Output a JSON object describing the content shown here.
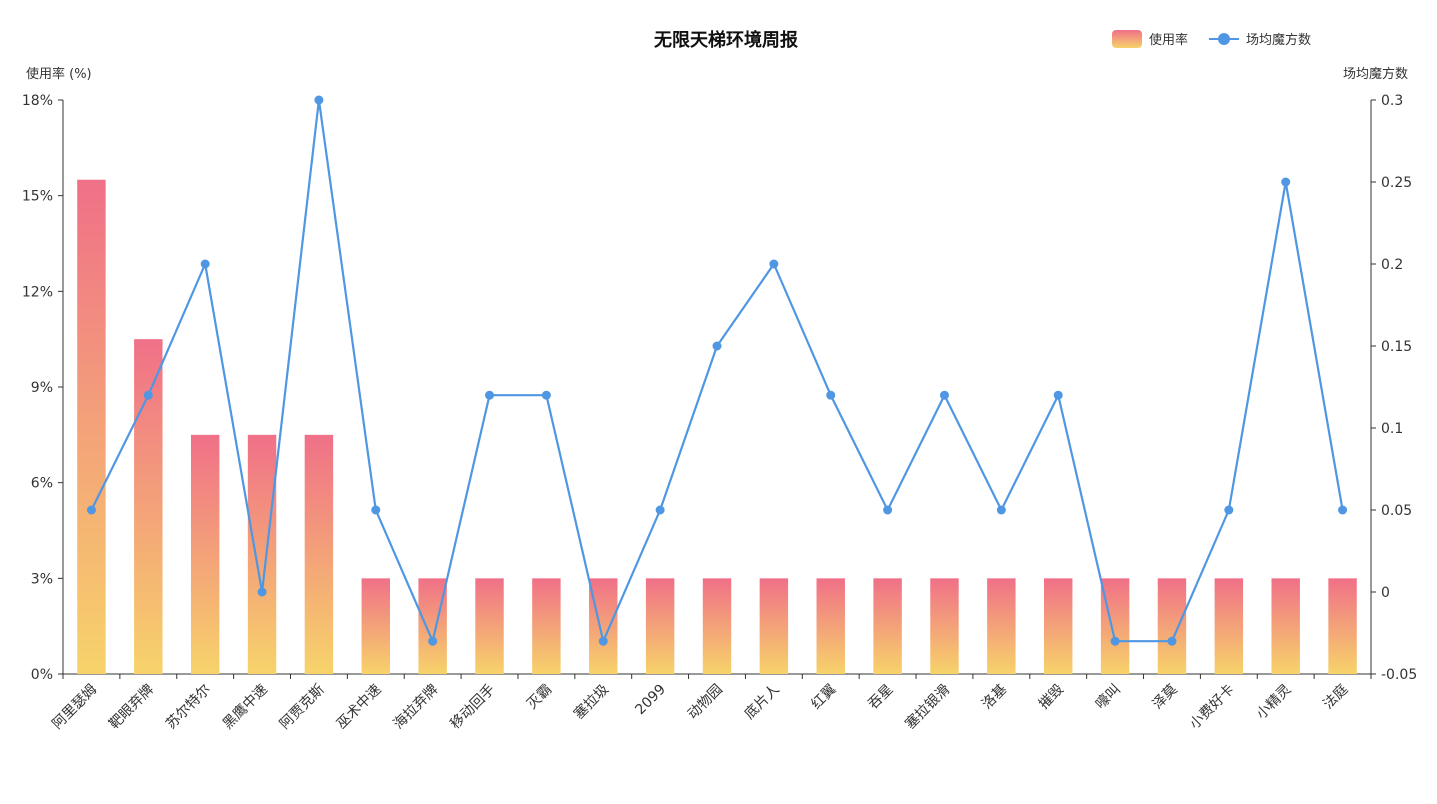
{
  "chart_data": {
    "type": "bar",
    "title": "无限天梯环境周报",
    "legend": {
      "position": "top-right",
      "items": [
        "使用率",
        "场均魔方数"
      ]
    },
    "categories": [
      "阿里瑟姆",
      "靶眼弃牌",
      "苏尔特尔",
      "黑鹰中速",
      "阿贾克斯",
      "巫术中速",
      "海拉弃牌",
      "移动回手",
      "灭霸",
      "塞拉圾",
      "2099",
      "动物园",
      "底片人",
      "红翼",
      "吞星",
      "塞拉银滑",
      "洛基",
      "摧毁",
      "嚎叫",
      "泽莫",
      "小费好卡",
      "小精灵",
      "法庭"
    ],
    "left_axis": {
      "label": "使用率 (%)",
      "min": 0,
      "max": 18,
      "ticks": [
        0,
        3,
        6,
        9,
        12,
        15,
        18
      ],
      "tick_labels": [
        "0%",
        "3%",
        "6%",
        "9%",
        "12%",
        "15%",
        "18%"
      ]
    },
    "right_axis": {
      "label": "场均魔方数",
      "min": -0.05,
      "max": 0.3,
      "ticks": [
        -0.05,
        0,
        0.05,
        0.1,
        0.15,
        0.2,
        0.25,
        0.3
      ],
      "tick_labels": [
        "-0.05",
        "0",
        "0.05",
        "0.1",
        "0.15",
        "0.2",
        "0.25",
        "0.3"
      ]
    },
    "series": [
      {
        "name": "使用率",
        "type": "bar",
        "axis": "left",
        "values": [
          15.5,
          10.5,
          7.5,
          7.5,
          7.5,
          3,
          3,
          3,
          3,
          3,
          3,
          3,
          3,
          3,
          3,
          3,
          3,
          3,
          3,
          3,
          3,
          3,
          3
        ]
      },
      {
        "name": "场均魔方数",
        "type": "line",
        "axis": "right",
        "values": [
          0.05,
          0.12,
          0.2,
          0,
          0.3,
          0.05,
          -0.03,
          0.12,
          0.12,
          -0.03,
          0.05,
          0.15,
          0.2,
          0.12,
          0.05,
          0.12,
          0.05,
          0.12,
          -0.03,
          -0.03,
          0.05,
          0.25,
          0.05
        ]
      }
    ],
    "colors": {
      "bar_top": "#f07088",
      "bar_bottom": "#f7d36a",
      "line": "#4f97e3",
      "axis": "#333333"
    },
    "grid": false
  }
}
